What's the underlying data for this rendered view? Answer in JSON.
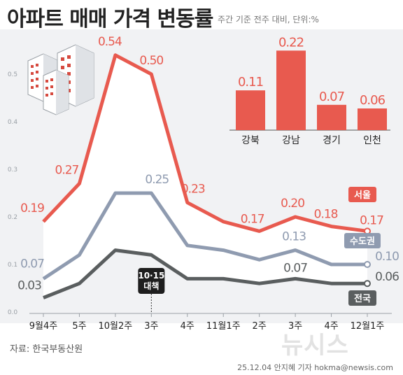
{
  "header": {
    "title": "아파트 매매 가격 변동률",
    "subtitle": "주간 기준 전주 대비, 단위:%"
  },
  "footer": {
    "source": "자료: 한국부동산원",
    "credit": "25.12.04 안지혜 기자 hokma@newsis.com",
    "watermark": "뉴시스"
  },
  "colors": {
    "seoul": "#e85a4f",
    "capital": "#8f9bb0",
    "national": "#5a5e5f",
    "bar": "#e85a4f"
  },
  "chart_data": [
    {
      "type": "line",
      "categories": [
        "9월4주",
        "5주",
        "10월2주",
        "3주",
        "4주",
        "11월1주",
        "2주",
        "3주",
        "4주",
        "12월1주"
      ],
      "ylim": [
        0,
        0.6
      ],
      "yticks": [
        0,
        0.1,
        0.2,
        0.3,
        0.4,
        0.5
      ],
      "ytick_labels": [
        "0.0",
        "0.1",
        "0.2",
        "0.3",
        "0.4",
        "0.5"
      ],
      "grid": false,
      "series": [
        {
          "name": "서울",
          "values": [
            0.19,
            0.27,
            0.54,
            0.5,
            0.23,
            0.19,
            0.17,
            0.2,
            0.18,
            0.17
          ],
          "labels": [
            "0.19",
            "0.27",
            "0.54",
            "0.50",
            "0.23",
            "",
            "0.17",
            "0.20",
            "0.18",
            "0.17"
          ]
        },
        {
          "name": "수도권",
          "values": [
            0.07,
            0.12,
            0.25,
            0.25,
            0.14,
            0.13,
            0.11,
            0.13,
            0.1,
            0.1
          ],
          "labels": [
            "0.07",
            "",
            "",
            "0.25",
            "",
            "",
            "",
            "0.13",
            "",
            "0.10"
          ]
        },
        {
          "name": "전국",
          "values": [
            0.03,
            0.06,
            0.13,
            0.12,
            0.07,
            0.07,
            0.06,
            0.07,
            0.06,
            0.06
          ],
          "labels": [
            "0.03",
            "",
            "",
            "",
            "",
            "",
            "",
            "0.07",
            "",
            "0.06"
          ]
        }
      ],
      "annotations": [
        {
          "text": "10·15 대책",
          "lines": [
            "10·15",
            "대책"
          ],
          "category_index": 3
        }
      ]
    },
    {
      "type": "bar",
      "categories": [
        "강북",
        "강남",
        "경기",
        "인천"
      ],
      "values": [
        0.11,
        0.22,
        0.07,
        0.06
      ],
      "value_labels": [
        "0.11",
        "0.22",
        "0.07",
        "0.06"
      ]
    }
  ]
}
